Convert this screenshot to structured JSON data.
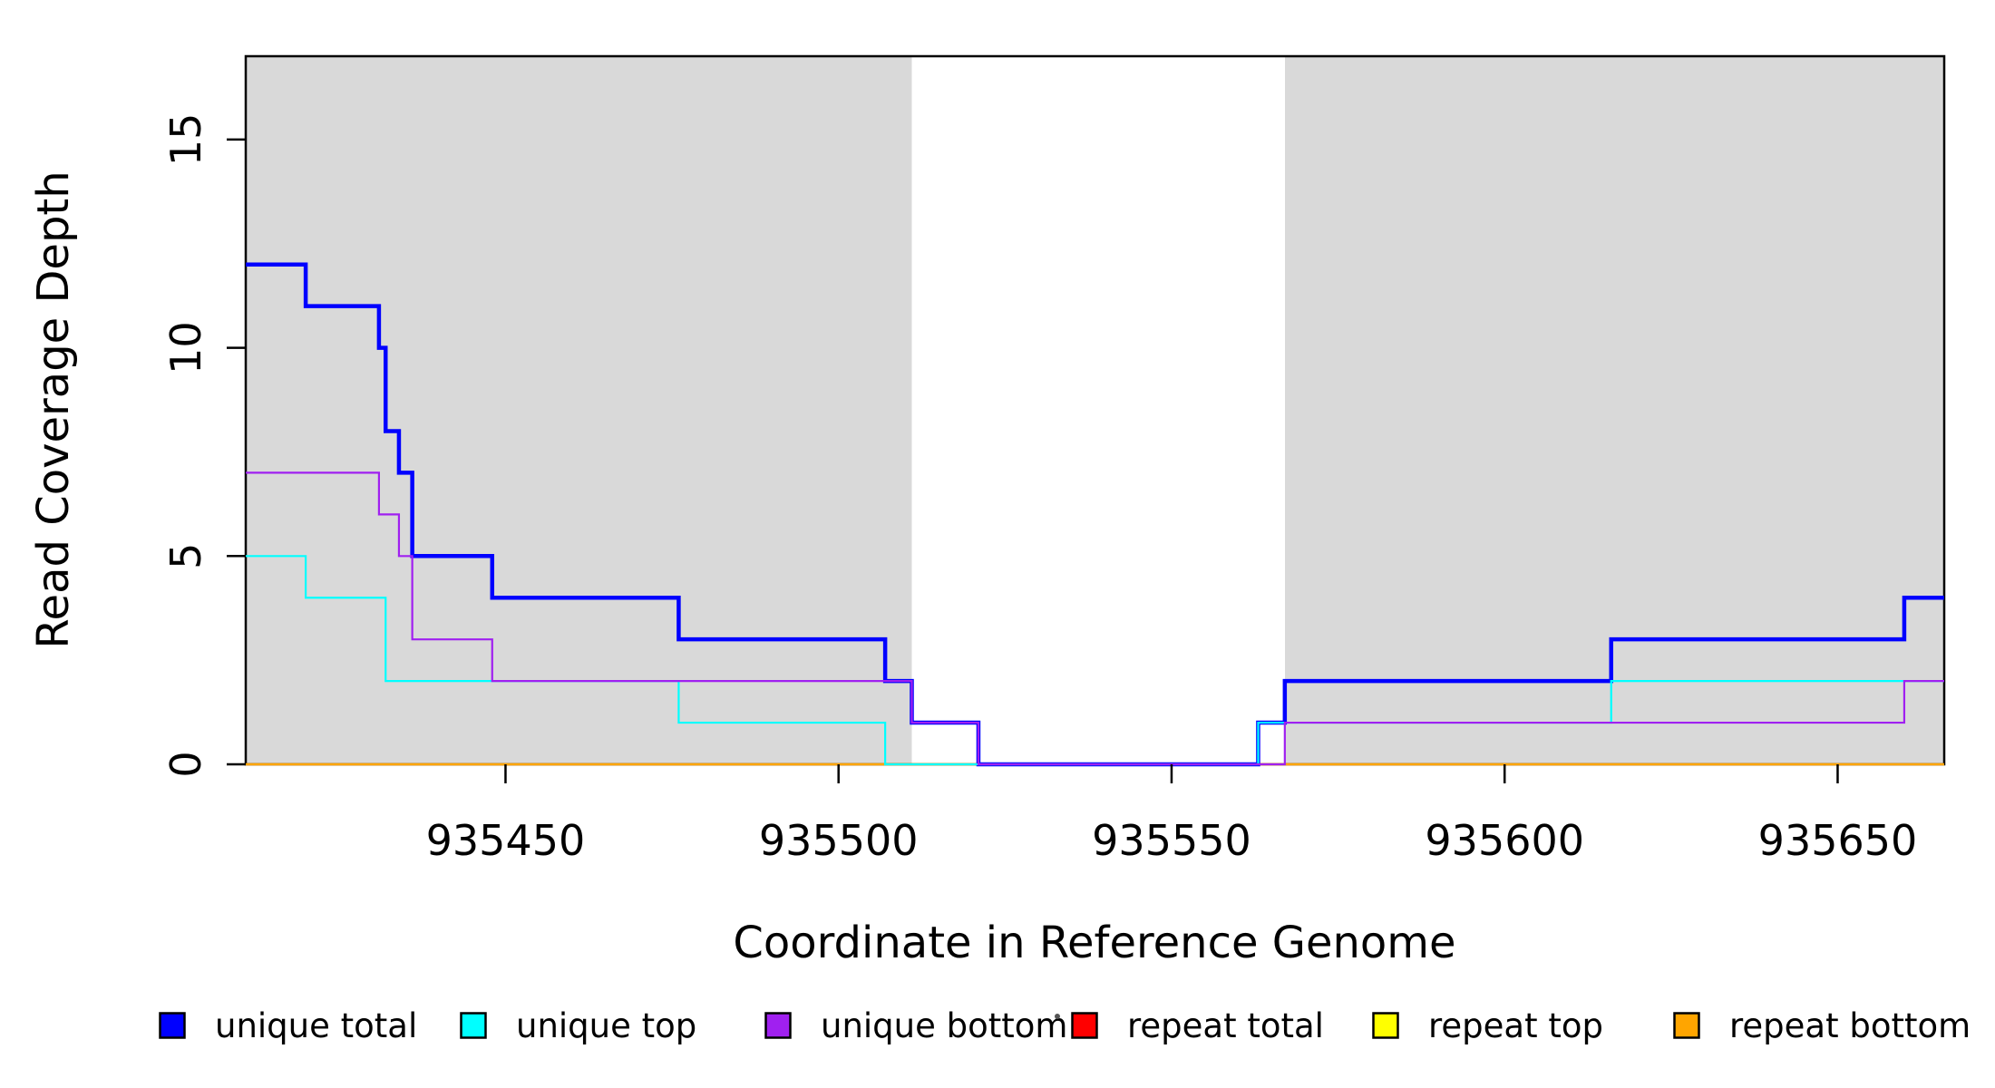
{
  "chart_data": {
    "type": "step-line",
    "title": "",
    "xlabel": "Coordinate in Reference Genome",
    "ylabel": "Read Coverage Depth",
    "xlim": [
      935411,
      935666
    ],
    "ylim": [
      0,
      17
    ],
    "x_ticks": [
      935450,
      935500,
      935550,
      935600,
      935650
    ],
    "y_ticks": [
      0,
      5,
      10,
      15
    ],
    "grid": false,
    "background_color": "#ffffff",
    "shade_color": "#d9d9d9",
    "shaded_regions": [
      {
        "from": 935411,
        "to": 935511
      },
      {
        "from": 935567,
        "to": 935666
      }
    ],
    "series": [
      {
        "name": "unique total",
        "color": "#0000ff",
        "line_width": 4.5,
        "steps": [
          [
            935411,
            12
          ],
          [
            935420,
            11
          ],
          [
            935431,
            10
          ],
          [
            935432,
            8
          ],
          [
            935434,
            7
          ],
          [
            935436,
            5
          ],
          [
            935448,
            4
          ],
          [
            935476,
            3
          ],
          [
            935507,
            2
          ],
          [
            935511,
            1
          ],
          [
            935521,
            0
          ],
          [
            935563,
            1
          ],
          [
            935567,
            2
          ],
          [
            935616,
            3
          ],
          [
            935660,
            4
          ],
          [
            935666,
            4
          ]
        ]
      },
      {
        "name": "unique top",
        "color": "#00ffff",
        "line_width": 2.2,
        "steps": [
          [
            935411,
            5
          ],
          [
            935420,
            4
          ],
          [
            935432,
            2
          ],
          [
            935476,
            1
          ],
          [
            935507,
            0
          ],
          [
            935563,
            1
          ],
          [
            935616,
            2
          ],
          [
            935666,
            2
          ]
        ]
      },
      {
        "name": "unique bottom",
        "color": "#a020f0",
        "line_width": 2.2,
        "steps": [
          [
            935411,
            7
          ],
          [
            935431,
            6
          ],
          [
            935434,
            5
          ],
          [
            935436,
            3
          ],
          [
            935448,
            2
          ],
          [
            935511,
            1
          ],
          [
            935521,
            0
          ],
          [
            935567,
            1
          ],
          [
            935660,
            2
          ],
          [
            935666,
            2
          ]
        ]
      },
      {
        "name": "repeat total",
        "color": "#ff0000",
        "line_width": 2.2,
        "steps": [
          [
            935411,
            0
          ],
          [
            935666,
            0
          ]
        ]
      },
      {
        "name": "repeat top",
        "color": "#ffff00",
        "line_width": 2.2,
        "steps": [
          [
            935411,
            0
          ],
          [
            935666,
            0
          ]
        ]
      },
      {
        "name": "repeat bottom",
        "color": "#ffa500",
        "line_width": 2.2,
        "steps": [
          [
            935411,
            0
          ],
          [
            935666,
            0
          ]
        ]
      }
    ],
    "legend": {
      "position": "bottom",
      "items": [
        {
          "label": "unique total",
          "color": "#0000ff"
        },
        {
          "label": "unique top",
          "color": "#00ffff"
        },
        {
          "label": "unique bottom",
          "color": "#a020f0"
        },
        {
          "label": "repeat total",
          "color": "#ff0000"
        },
        {
          "label": "repeat top",
          "color": "#ffff00"
        },
        {
          "label": "repeat bottom",
          "color": "#ffa500"
        }
      ],
      "stray_mark_present": true
    }
  }
}
